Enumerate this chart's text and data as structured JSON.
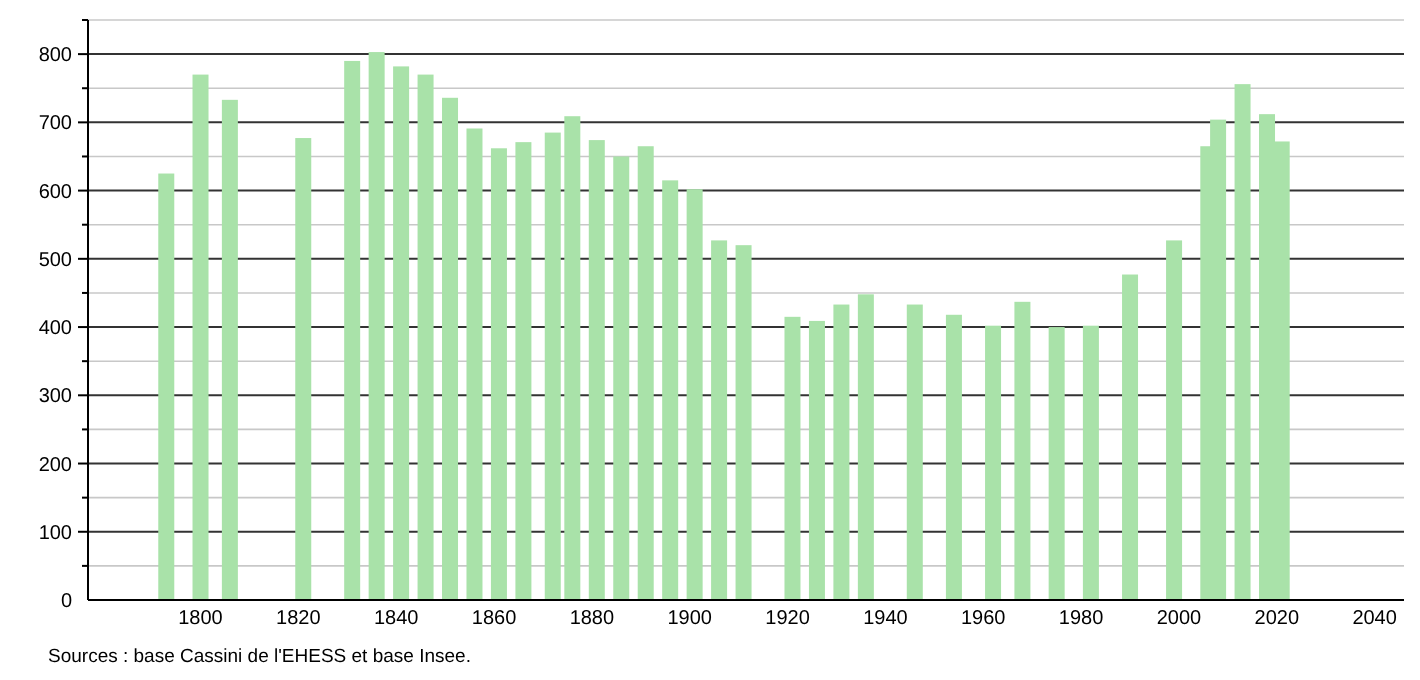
{
  "chart_data": {
    "type": "bar",
    "x": [
      1793,
      1800,
      1806,
      1821,
      1831,
      1836,
      1841,
      1846,
      1851,
      1856,
      1861,
      1866,
      1872,
      1876,
      1881,
      1886,
      1891,
      1896,
      1901,
      1906,
      1911,
      1921,
      1926,
      1931,
      1936,
      1946,
      1954,
      1962,
      1968,
      1975,
      1982,
      1990,
      1999,
      2006,
      2008,
      2013,
      2018,
      2021
    ],
    "values": [
      625,
      770,
      733,
      677,
      790,
      803,
      782,
      770,
      736,
      691,
      662,
      671,
      685,
      709,
      674,
      650,
      665,
      615,
      602,
      527,
      520,
      415,
      409,
      433,
      448,
      433,
      418,
      402,
      437,
      400,
      402,
      477,
      527,
      665,
      704,
      756,
      712,
      672
    ],
    "color": "#a9e2a9",
    "xlim": [
      1777,
      2046
    ],
    "xticks": [
      1800,
      1820,
      1840,
      1860,
      1880,
      1900,
      1920,
      1940,
      1960,
      1980,
      2000,
      2020,
      2040
    ],
    "ylim": [
      0,
      850
    ],
    "yticks": [
      0,
      {
        "value": 50,
        "label": null
      },
      100,
      {
        "value": 150,
        "label": null
      },
      200,
      {
        "value": 250,
        "label": null
      },
      300,
      {
        "value": 350,
        "label": null
      },
      400,
      {
        "value": 450,
        "label": null
      },
      500,
      {
        "value": 550,
        "label": null
      },
      600,
      {
        "value": 650,
        "label": null
      },
      700,
      {
        "value": 750,
        "label": null
      },
      800,
      {
        "value": 850,
        "label": null
      }
    ],
    "grid": "y",
    "annotations": [
      "Sources : base Cassini de l'EHESS et base Insee."
    ]
  }
}
